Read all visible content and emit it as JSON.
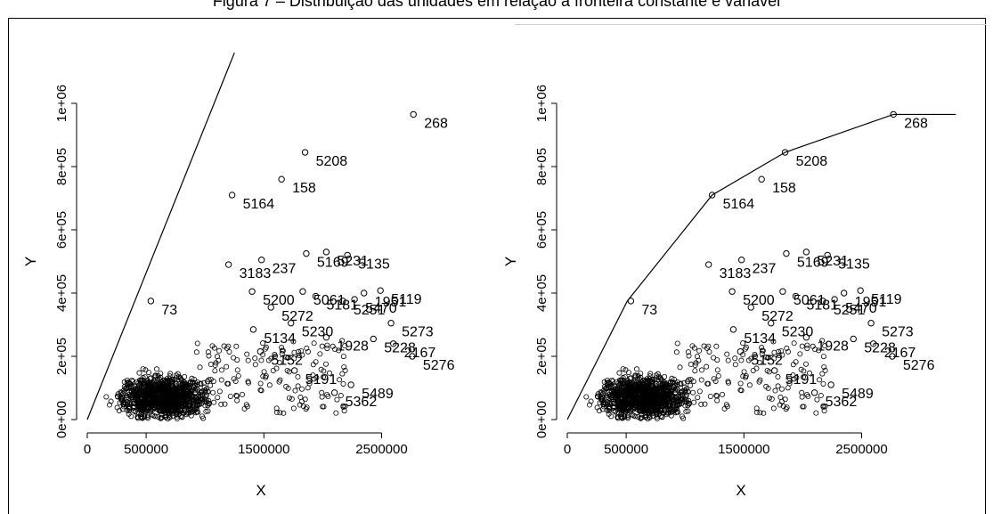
{
  "caption": "Figura 7 – Distribuição das unidades em relação à fronteira constante e variável",
  "chart_data": [
    {
      "type": "scatter",
      "frontier": "constant",
      "xlabel": "X",
      "ylabel": "Y",
      "xlim": [
        0,
        2950000
      ],
      "ylim": [
        0,
        1000000
      ],
      "x_ticks": [
        0,
        500000,
        1500000,
        2500000
      ],
      "x_tick_labels": [
        "0",
        "500000",
        "1500000",
        "2500000"
      ],
      "y_ticks": [
        0,
        200000,
        400000,
        600000,
        800000,
        1000000
      ],
      "y_tick_labels": [
        "0e+00",
        "2e+05",
        "4e+05",
        "6e+05",
        "8e+05",
        "1e+06"
      ],
      "frontier_line": [
        [
          0,
          0
        ],
        [
          1250000,
          1160000
        ]
      ],
      "points": [
        {
          "id": "268",
          "x": 2770000,
          "y": 965000
        },
        {
          "id": "5208",
          "x": 1850000,
          "y": 845000
        },
        {
          "id": "158",
          "x": 1650000,
          "y": 760000
        },
        {
          "id": "5164",
          "x": 1230000,
          "y": 710000
        },
        {
          "id": "5169",
          "x": 1860000,
          "y": 525000
        },
        {
          "id": "5231",
          "x": 2030000,
          "y": 530000
        },
        {
          "id": "5135",
          "x": 2210000,
          "y": 520000
        },
        {
          "id": "237",
          "x": 1480000,
          "y": 505000
        },
        {
          "id": "3183",
          "x": 1200000,
          "y": 490000
        },
        {
          "id": "5061",
          "x": 1830000,
          "y": 405000
        },
        {
          "id": "5181",
          "x": 1940000,
          "y": 390000
        },
        {
          "id": "5119",
          "x": 2490000,
          "y": 408000
        },
        {
          "id": "1951",
          "x": 2350000,
          "y": 400000
        },
        {
          "id": "5470",
          "x": 2270000,
          "y": 380000
        },
        {
          "id": "5251",
          "x": 2170000,
          "y": 375000
        },
        {
          "id": "5200",
          "x": 1400000,
          "y": 405000
        },
        {
          "id": "73",
          "x": 540000,
          "y": 375000
        },
        {
          "id": "5272",
          "x": 1560000,
          "y": 355000
        },
        {
          "id": "5230",
          "x": 1730000,
          "y": 305000
        },
        {
          "id": "5273",
          "x": 2580000,
          "y": 305000
        },
        {
          "id": "5134",
          "x": 1410000,
          "y": 285000
        },
        {
          "id": "1928",
          "x": 2030000,
          "y": 260000
        },
        {
          "id": "5228",
          "x": 2430000,
          "y": 255000
        },
        {
          "id": "2167",
          "x": 2600000,
          "y": 240000
        },
        {
          "id": "5276",
          "x": 2760000,
          "y": 200000
        },
        {
          "id": "5152",
          "x": 1470000,
          "y": 215000
        },
        {
          "id": "5191",
          "x": 1760000,
          "y": 155000
        },
        {
          "id": "5489",
          "x": 2240000,
          "y": 110000
        },
        {
          "id": "5362",
          "x": 2100000,
          "y": 85000
        }
      ]
    },
    {
      "type": "scatter",
      "frontier": "variable",
      "xlabel": "X",
      "ylabel": "Y",
      "xlim": [
        0,
        2950000
      ],
      "ylim": [
        0,
        1000000
      ],
      "x_ticks": [
        0,
        500000,
        1500000,
        2500000
      ],
      "x_tick_labels": [
        "0",
        "500000",
        "1500000",
        "2500000"
      ],
      "y_ticks": [
        0,
        200000,
        400000,
        600000,
        800000,
        1000000
      ],
      "y_tick_labels": [
        "0e+00",
        "2e+05",
        "4e+05",
        "6e+05",
        "8e+05",
        "1e+06"
      ],
      "frontier_line": [
        [
          0,
          0
        ],
        [
          510000,
          375000
        ],
        [
          1230000,
          710000
        ],
        [
          1850000,
          845000
        ],
        [
          2770000,
          965000
        ],
        [
          3300000,
          965000
        ]
      ],
      "points": [
        {
          "id": "268",
          "x": 2770000,
          "y": 965000
        },
        {
          "id": "5208",
          "x": 1850000,
          "y": 845000
        },
        {
          "id": "158",
          "x": 1650000,
          "y": 760000
        },
        {
          "id": "5164",
          "x": 1230000,
          "y": 710000
        },
        {
          "id": "5169",
          "x": 1860000,
          "y": 525000
        },
        {
          "id": "5231",
          "x": 2030000,
          "y": 530000
        },
        {
          "id": "5135",
          "x": 2210000,
          "y": 520000
        },
        {
          "id": "237",
          "x": 1480000,
          "y": 505000
        },
        {
          "id": "3183",
          "x": 1200000,
          "y": 490000
        },
        {
          "id": "5061",
          "x": 1830000,
          "y": 405000
        },
        {
          "id": "5181",
          "x": 1940000,
          "y": 390000
        },
        {
          "id": "5119",
          "x": 2490000,
          "y": 408000
        },
        {
          "id": "1951",
          "x": 2350000,
          "y": 400000
        },
        {
          "id": "5470",
          "x": 2270000,
          "y": 380000
        },
        {
          "id": "5251",
          "x": 2170000,
          "y": 375000
        },
        {
          "id": "5200",
          "x": 1400000,
          "y": 405000
        },
        {
          "id": "73",
          "x": 540000,
          "y": 375000
        },
        {
          "id": "5272",
          "x": 1560000,
          "y": 355000
        },
        {
          "id": "5230",
          "x": 1730000,
          "y": 305000
        },
        {
          "id": "5273",
          "x": 2580000,
          "y": 305000
        },
        {
          "id": "5134",
          "x": 1410000,
          "y": 285000
        },
        {
          "id": "1928",
          "x": 2030000,
          "y": 260000
        },
        {
          "id": "5228",
          "x": 2430000,
          "y": 255000
        },
        {
          "id": "2167",
          "x": 2600000,
          "y": 240000
        },
        {
          "id": "5276",
          "x": 2760000,
          "y": 200000
        },
        {
          "id": "5152",
          "x": 1470000,
          "y": 215000
        },
        {
          "id": "5191",
          "x": 1760000,
          "y": 155000
        },
        {
          "id": "5489",
          "x": 2240000,
          "y": 110000
        },
        {
          "id": "5362",
          "x": 2100000,
          "y": 85000
        }
      ]
    }
  ]
}
